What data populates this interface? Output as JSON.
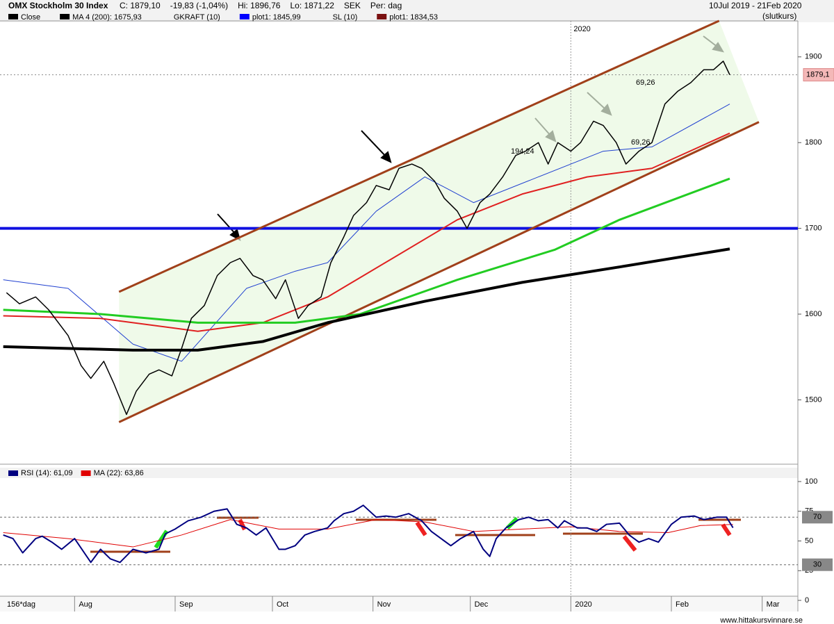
{
  "chart_data": {
    "type": "line",
    "title": "OMX Stockholm 30 Index",
    "quote": [
      "C: 1879,10",
      "-19,83 (-1,04%)",
      "Hi: 1896,76",
      "Lo: 1871,22",
      "SEK",
      "Per: dag"
    ],
    "date_range": "10Jul 2019 - 21Feb 2020",
    "price_mode": "(slutkurs)",
    "legend": [
      {
        "label": "Close",
        "color": "#000000"
      },
      {
        "label": "MA 4 (200): 1675,93",
        "color": "#000000"
      },
      {
        "label": "GKRAFT (10)"
      },
      {
        "label": "plot1: 1845,99",
        "color": "#0000ff"
      },
      {
        "label": "SL (10)"
      },
      {
        "label": "plot1: 1834,53",
        "color": "#7a1010"
      }
    ],
    "period_label": "156*dag",
    "year_marker": "2020",
    "xlim": [
      -1,
      245
    ],
    "xticks": [
      {
        "value": 22,
        "label": "Aug"
      },
      {
        "value": 53,
        "label": "Sep"
      },
      {
        "value": 83,
        "label": "Oct"
      },
      {
        "value": 114,
        "label": "Nov"
      },
      {
        "value": 144,
        "label": "Dec"
      },
      {
        "value": 175,
        "label": "2020"
      },
      {
        "value": 206,
        "label": "Feb"
      },
      {
        "value": 234,
        "label": "Mar"
      }
    ],
    "ylim": [
      1425,
      1942
    ],
    "yticks": [
      1500,
      1600,
      1700,
      1800,
      1900
    ],
    "last_price": {
      "value": 1879.1,
      "label": "1879,1"
    },
    "hline": {
      "value": 1700,
      "color": "#1010e0"
    },
    "channel_color": "#a0401a",
    "channel": [
      {
        "x": [
          35.7,
          220.7
        ],
        "values": [
          1626,
          1942
        ]
      },
      {
        "x": [
          35.7,
          233
        ],
        "values": [
          1474,
          1824
        ]
      }
    ],
    "series": [
      {
        "color": "#000000",
        "width": 1.5,
        "x": [
          1,
          5,
          10,
          14,
          17,
          20,
          24,
          27,
          31,
          34,
          38,
          41,
          45,
          48,
          52,
          55,
          58,
          62,
          66,
          70,
          73,
          77,
          80,
          84,
          87,
          91,
          94,
          98,
          101,
          105,
          108,
          112,
          115,
          119,
          122,
          126,
          129,
          133,
          136,
          140,
          143,
          147,
          150,
          154,
          158,
          161,
          165,
          168,
          171,
          175,
          178,
          182,
          185,
          189,
          192,
          196,
          200,
          204,
          208,
          212,
          216,
          219,
          222,
          224
        ],
        "values": [
          1625,
          1612,
          1620,
          1605,
          1590,
          1575,
          1540,
          1525,
          1545,
          1520,
          1483,
          1510,
          1530,
          1535,
          1528,
          1560,
          1595,
          1610,
          1645,
          1660,
          1665,
          1645,
          1640,
          1618,
          1640,
          1595,
          1610,
          1620,
          1660,
          1690,
          1715,
          1730,
          1750,
          1745,
          1770,
          1775,
          1770,
          1755,
          1735,
          1720,
          1700,
          1730,
          1740,
          1760,
          1785,
          1790,
          1800,
          1775,
          1800,
          1790,
          1800,
          1825,
          1820,
          1800,
          1775,
          1790,
          1800,
          1845,
          1860,
          1870,
          1885,
          1885,
          1895,
          1879.1
        ]
      },
      {
        "color": "#000000",
        "width": 4,
        "x": [
          0,
          40,
          60,
          80,
          100,
          130,
          160,
          190,
          224
        ],
        "values": [
          1562,
          1558,
          1558,
          1568,
          1590,
          1615,
          1637,
          1655,
          1676
        ]
      },
      {
        "color": "#22cc22",
        "width": 3,
        "x": [
          0,
          30,
          60,
          90,
          110,
          140,
          170,
          190,
          224
        ],
        "values": [
          1605,
          1600,
          1590,
          1590,
          1600,
          1640,
          1675,
          1710,
          1758
        ]
      },
      {
        "color": "#e02020",
        "width": 2,
        "x": [
          0,
          30,
          60,
          80,
          100,
          120,
          140,
          160,
          180,
          200,
          224
        ],
        "values": [
          1598,
          1595,
          1580,
          1590,
          1620,
          1665,
          1710,
          1740,
          1760,
          1770,
          1811
        ]
      },
      {
        "color": "#2040d0",
        "width": 1,
        "x": [
          0,
          20,
          40,
          55,
          75,
          90,
          100,
          115,
          130,
          145,
          165,
          185,
          200,
          224
        ],
        "values": [
          1640,
          1630,
          1565,
          1545,
          1630,
          1650,
          1660,
          1720,
          1760,
          1730,
          1760,
          1790,
          1795,
          1845
        ]
      }
    ],
    "annotations": [
      "194,24",
      "69,26",
      "69,26"
    ],
    "watermark": "www.hittakursvinnare.se",
    "rsi": {
      "legend": [
        {
          "label": "RSI (14): 61,09",
          "color": "#000080"
        },
        {
          "label": "MA (22): 63,86",
          "color": "#e00000"
        }
      ],
      "ylim": [
        0,
        100
      ],
      "yticks": [
        0,
        25,
        50,
        75,
        100
      ],
      "levels": [
        70,
        30
      ],
      "series": [
        {
          "color": "#000080",
          "width": 2,
          "x": [
            0,
            3,
            6,
            10,
            12,
            15,
            18,
            22,
            27,
            30,
            33,
            36,
            40,
            44,
            48,
            50,
            53,
            57,
            61,
            65,
            69,
            72,
            75,
            78,
            81,
            85,
            87,
            90,
            93,
            96,
            100,
            102,
            105,
            108,
            111,
            115,
            118,
            121,
            125,
            129,
            132,
            135,
            138,
            141,
            145,
            148,
            150,
            152,
            155,
            159,
            162,
            165,
            168,
            171,
            173,
            177,
            180,
            183,
            186,
            190,
            193,
            196,
            199,
            202,
            206,
            209,
            213,
            216,
            220,
            223,
            225
          ],
          "values": [
            55,
            52,
            40,
            52,
            54,
            49,
            43,
            52,
            32,
            43,
            35,
            32,
            43,
            40,
            43,
            56,
            60,
            67,
            70,
            75,
            77,
            64,
            61,
            55,
            61,
            43,
            43,
            46,
            55,
            58,
            61,
            67,
            73,
            75,
            80,
            70,
            71,
            70,
            73,
            67,
            58,
            52,
            46,
            52,
            58,
            43,
            37,
            52,
            61,
            68,
            70,
            67,
            68,
            61,
            67,
            61,
            61,
            58,
            64,
            65,
            55,
            49,
            52,
            49,
            64,
            70,
            71,
            68,
            70,
            70,
            61.09
          ]
        },
        {
          "color": "#e00000",
          "width": 1,
          "x": [
            0,
            20,
            40,
            55,
            70,
            85,
            100,
            115,
            130,
            145,
            160,
            175,
            190,
            205,
            215,
            225
          ],
          "values": [
            57,
            52,
            45,
            55,
            68,
            60,
            60,
            68,
            66,
            58,
            60,
            62,
            58,
            57,
            63,
            63.86
          ]
        }
      ]
    }
  }
}
